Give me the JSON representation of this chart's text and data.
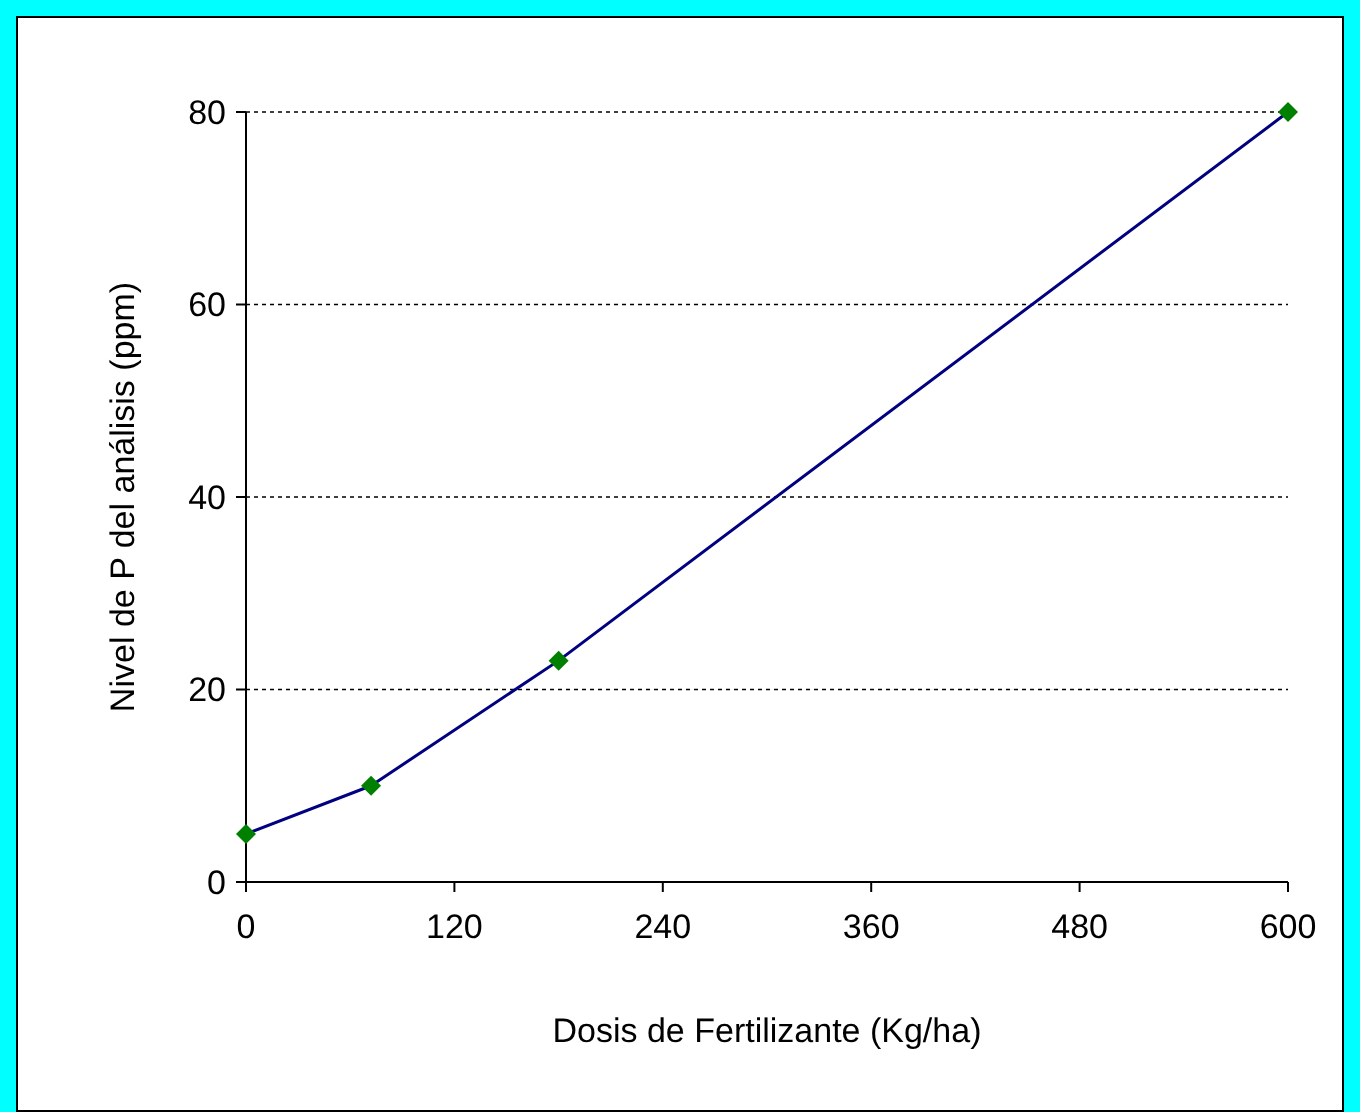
{
  "chart_data": {
    "type": "line",
    "xlabel": "Dosis de Fertilizante (Kg/ha)",
    "ylabel": "Nivel de P del análisis (ppm)",
    "x": [
      0,
      72,
      180,
      600
    ],
    "series": [
      {
        "color": "#000080",
        "values": [
          5,
          10,
          23,
          80
        ]
      }
    ],
    "marker": "diamond",
    "line_style": "solid",
    "xlim": [
      0,
      600
    ],
    "xticks": [
      0,
      120,
      240,
      360,
      480,
      600
    ],
    "ylim": [
      0,
      80
    ],
    "yticks": [
      0,
      20,
      40,
      60,
      80
    ],
    "grid": "y"
  }
}
